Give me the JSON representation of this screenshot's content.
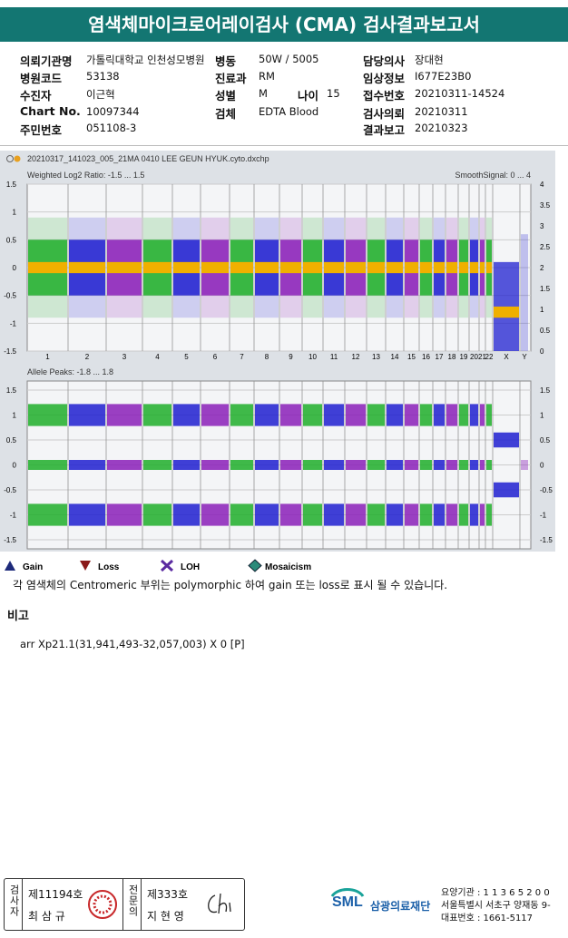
{
  "header": {
    "title": "염색체마이크로어레이검사 (CMA) 검사결과보고서"
  },
  "info": [
    {
      "label": "의뢰기관명",
      "value": "가톨릭대학교 인천성모병원"
    },
    {
      "label": "병동",
      "value": "50W / 5005"
    },
    {
      "label": "담당의사",
      "value": "장대현"
    },
    {
      "label": "병원코드",
      "value": "53138"
    },
    {
      "label": "진료과",
      "value": "RM"
    },
    {
      "label": "임상정보",
      "value": "I677E23B0"
    },
    {
      "label": "수진자",
      "value": "이근혁"
    },
    {
      "label": "성별",
      "value": "M"
    },
    {
      "label": "나이",
      "value": "15"
    },
    {
      "label": "접수번호",
      "value": "20210311-14524"
    },
    {
      "label": "Chart No.",
      "value": "10097344"
    },
    {
      "label": "검체",
      "value": "EDTA Blood"
    },
    {
      "label": "검사의뢰",
      "value": "20210311"
    },
    {
      "label": "주민번호",
      "value": "051108-3"
    },
    {
      "label": "결과보고",
      "value": "20210323"
    }
  ],
  "plot": {
    "file": "20210317_141023_005_21MA 0410 LEE GEUN HYUK.cyto.dxchp",
    "top_label": "Weighted Log2 Ratio: -1.5 ... 1.5",
    "top_right_label": "SmoothSignal: 0 ... 4",
    "top_left_ticks": [
      "1.5",
      "1",
      "0.5",
      "0",
      "-0.5",
      "-1",
      "-1.5"
    ],
    "top_right_ticks": [
      "4",
      "3.5",
      "3",
      "2.5",
      "2",
      "1.5",
      "1",
      "0.5",
      "0"
    ],
    "chromosomes": [
      "1",
      "2",
      "3",
      "4",
      "5",
      "6",
      "7",
      "8",
      "9",
      "10",
      "11",
      "12",
      "13",
      "14",
      "15",
      "16",
      "17",
      "18",
      "19",
      "20",
      "21",
      "22",
      "X",
      "Y"
    ],
    "bottom_label": "Allele Peaks: -1.8 ... 1.8",
    "bottom_ticks": [
      "1.5",
      "1",
      "0.5",
      "0",
      "-0.5",
      "-1",
      "-1.5"
    ]
  },
  "legend": [
    "Gain",
    "Loss",
    "LOH",
    "Mosaicism"
  ],
  "note": "각 염색체의 Centromeric 부위는 polymorphic 하여 gain 또는 loss로 표시 될 수 있습니다.",
  "remarks": {
    "title": "비고",
    "text": "arr Xp21.1(31,941,493-32,057,003) X 0 [P]"
  },
  "footer": {
    "tester_role": "검사자",
    "tester_no": "제11194호",
    "tester_name": "최 삼 규",
    "doctor_role": "전문의",
    "doctor_no": "제333호",
    "doctor_name": "지 현 영",
    "logo": "SML",
    "org": "삼광의료재단",
    "address_lines": [
      "요양기관 : 1 1 3 6 5 2 0 0",
      "서울특별시 서초구 양재동 9-",
      "대표번호 : 1661-5117"
    ]
  }
}
